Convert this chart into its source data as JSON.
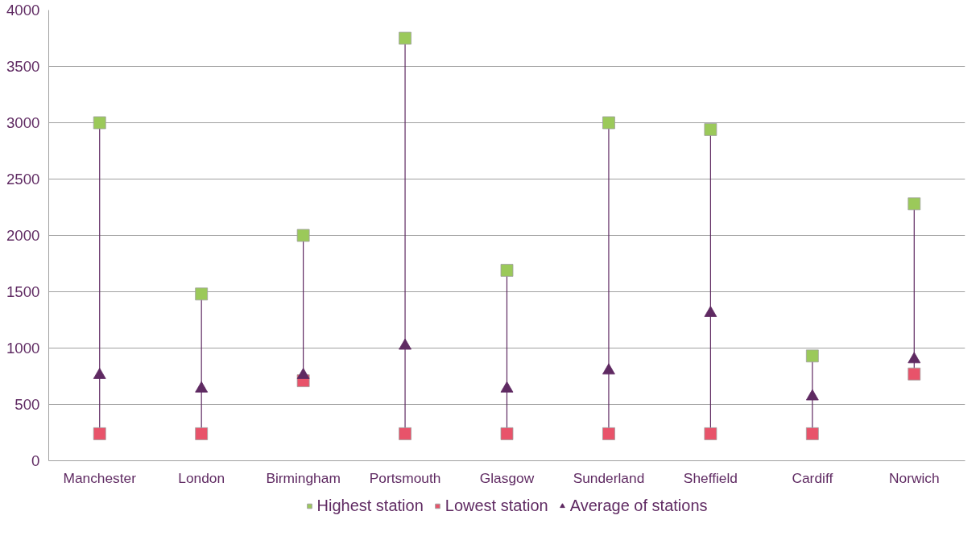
{
  "chart_data": {
    "type": "scatter",
    "categories": [
      "Manchester",
      "London",
      "Birmingham",
      "Portsmouth",
      "Glasgow",
      "Sunderland",
      "Sheffield",
      "Cardiff",
      "Norwich"
    ],
    "series": [
      {
        "name": "Highest station",
        "color": "#9bc95a",
        "marker": "square",
        "values": [
          3000,
          1480,
          2000,
          3750,
          1690,
          3000,
          2940,
          930,
          2280
        ]
      },
      {
        "name": "Lowest station",
        "color": "#e8536a",
        "marker": "square",
        "values": [
          240,
          240,
          710,
          240,
          240,
          240,
          240,
          240,
          770
        ]
      },
      {
        "name": "Average of stations",
        "color": "#5f2a62",
        "marker": "triangle",
        "values": [
          760,
          640,
          760,
          1020,
          640,
          800,
          1310,
          570,
          900
        ]
      }
    ],
    "ylim": [
      0,
      4000
    ],
    "yticks": [
      0,
      500,
      1000,
      1500,
      2000,
      2500,
      3000,
      3500,
      4000
    ],
    "grid": "y",
    "legend": "bottom",
    "line_style": "solid"
  }
}
